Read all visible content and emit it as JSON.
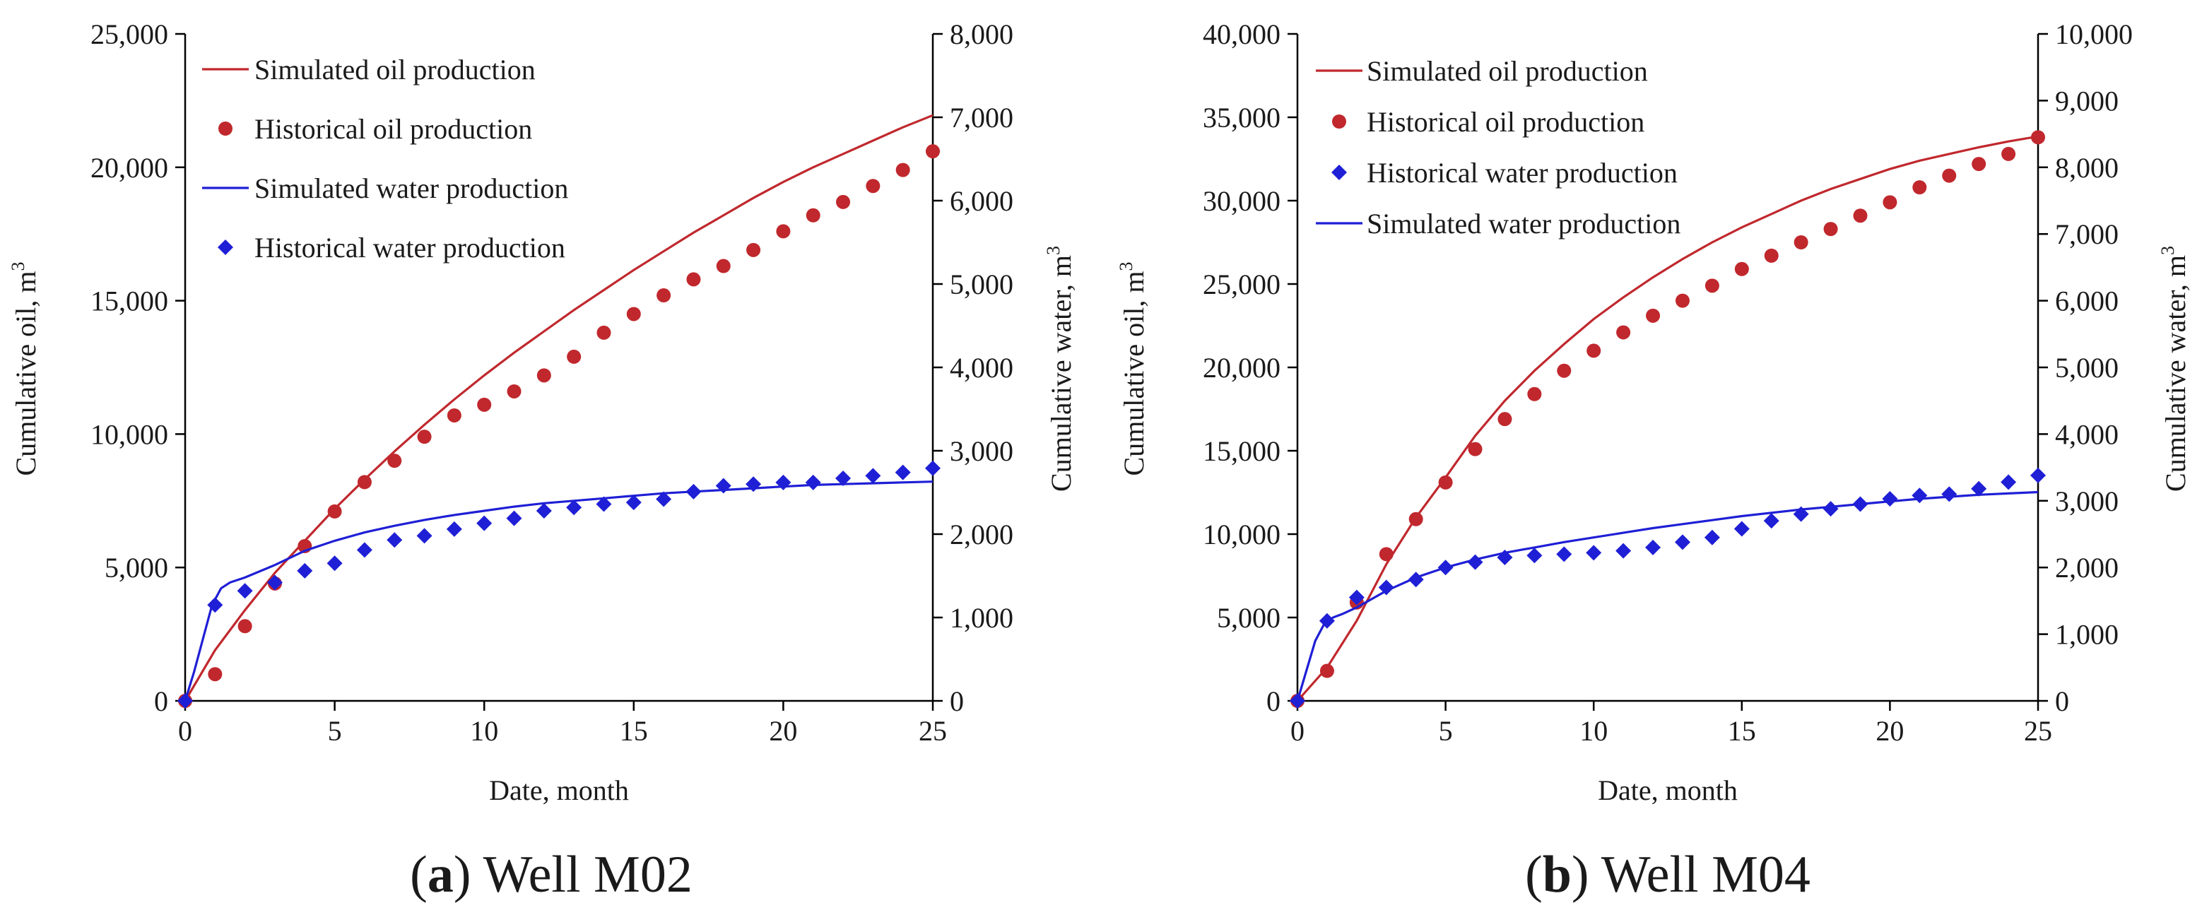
{
  "chart_data": [
    {
      "type": "line",
      "caption": {
        "letter": "a",
        "rest": " Well M02"
      },
      "xlabel": "Date, month",
      "ylabel_left": "Cumulative oil, m",
      "ylabel_right": "Cumulative water, m",
      "ylabel_sup": "3",
      "xlim": [
        0,
        25
      ],
      "ylim_left": [
        0,
        25000
      ],
      "ylim_right": [
        0,
        8000
      ],
      "x_ticks": [
        "0",
        "5",
        "10",
        "15",
        "20",
        "25"
      ],
      "y_left_ticks": [
        "0",
        "5,000",
        "10,000",
        "15,000",
        "20,000",
        "25,000"
      ],
      "y_right_ticks": [
        "0",
        "1,000",
        "2,000",
        "3,000",
        "4,000",
        "5,000",
        "6,000",
        "7,000",
        "8,000"
      ],
      "grid": false,
      "legend_position": "top-left",
      "legend": [
        {
          "label": "Simulated oil production",
          "kind": "line",
          "color": "#c0282d"
        },
        {
          "label": "Historical oil production",
          "kind": "circle",
          "color": "#c0282d"
        },
        {
          "label": "Simulated water production",
          "kind": "line",
          "color": "#1f1fd6"
        },
        {
          "label": "Historical water production",
          "kind": "diamond",
          "color": "#1f1fd6"
        }
      ],
      "series": [
        {
          "name": "Simulated oil production",
          "axis": "left",
          "kind": "line",
          "color": "#c0282d",
          "x": [
            0,
            1,
            2,
            3,
            4,
            5,
            6,
            7,
            8,
            9,
            10,
            11,
            12,
            13,
            14,
            15,
            16,
            17,
            18,
            19,
            20,
            21,
            22,
            23,
            24,
            25
          ],
          "y": [
            0,
            1900,
            3400,
            4800,
            6000,
            7200,
            8300,
            9350,
            10350,
            11300,
            12200,
            13050,
            13850,
            14650,
            15400,
            16150,
            16850,
            17550,
            18200,
            18850,
            19450,
            20000,
            20500,
            21000,
            21500,
            21950
          ]
        },
        {
          "name": "Historical oil production",
          "axis": "left",
          "kind": "circle",
          "color": "#c0282d",
          "x": [
            0,
            1,
            2,
            3,
            4,
            5,
            6,
            7,
            8,
            9,
            10,
            11,
            12,
            13,
            14,
            15,
            16,
            17,
            18,
            19,
            20,
            21,
            22,
            23,
            24,
            25
          ],
          "y": [
            0,
            1000,
            2800,
            4400,
            5800,
            7100,
            8200,
            9000,
            9900,
            10700,
            11100,
            11600,
            12200,
            12900,
            13800,
            14500,
            15200,
            15800,
            16300,
            16900,
            17600,
            18200,
            18700,
            19300,
            19900,
            20600
          ]
        },
        {
          "name": "Simulated water production",
          "axis": "right",
          "kind": "line",
          "color": "#1f1fd6",
          "x": [
            0,
            0.3,
            0.6,
            0.9,
            1.2,
            1.5,
            2,
            3,
            4,
            5,
            6,
            7,
            8,
            9,
            10,
            11,
            12,
            13,
            14,
            15,
            16,
            17,
            18,
            19,
            20,
            21,
            22,
            23,
            24,
            25
          ],
          "y": [
            0,
            350,
            750,
            1150,
            1350,
            1420,
            1480,
            1630,
            1800,
            1920,
            2020,
            2100,
            2170,
            2230,
            2280,
            2330,
            2370,
            2400,
            2430,
            2460,
            2490,
            2510,
            2530,
            2550,
            2570,
            2590,
            2600,
            2610,
            2620,
            2630
          ]
        },
        {
          "name": "Historical water production",
          "axis": "right",
          "kind": "diamond",
          "color": "#1f1fd6",
          "x": [
            0,
            1,
            2,
            3,
            4,
            5,
            6,
            7,
            8,
            9,
            10,
            11,
            12,
            13,
            14,
            15,
            16,
            17,
            18,
            19,
            20,
            21,
            22,
            23,
            24,
            25
          ],
          "y": [
            0,
            1150,
            1320,
            1420,
            1560,
            1650,
            1810,
            1930,
            1980,
            2060,
            2130,
            2190,
            2280,
            2320,
            2360,
            2380,
            2420,
            2510,
            2580,
            2600,
            2620,
            2620,
            2670,
            2700,
            2740,
            2790
          ]
        }
      ]
    },
    {
      "type": "line",
      "caption": {
        "letter": "b",
        "rest": " Well M04"
      },
      "xlabel": "Date, month",
      "ylabel_left": "Cumulative oil, m",
      "ylabel_right": "Cumulative water, m",
      "ylabel_sup": "3",
      "xlim": [
        0,
        25
      ],
      "ylim_left": [
        0,
        40000
      ],
      "ylim_right": [
        0,
        10000
      ],
      "x_ticks": [
        "0",
        "5",
        "10",
        "15",
        "20",
        "25"
      ],
      "y_left_ticks": [
        "0",
        "5,000",
        "10,000",
        "15,000",
        "20,000",
        "25,000",
        "30,000",
        "35,000",
        "40,000"
      ],
      "y_right_ticks": [
        "0",
        "1,000",
        "2,000",
        "3,000",
        "4,000",
        "5,000",
        "6,000",
        "7,000",
        "8,000",
        "9,000",
        "10,000"
      ],
      "grid": false,
      "legend_position": "top-left",
      "legend": [
        {
          "label": "Simulated oil production",
          "kind": "line",
          "color": "#c0282d"
        },
        {
          "label": "Historical oil production",
          "kind": "circle",
          "color": "#c0282d"
        },
        {
          "label": "Historical water production",
          "kind": "diamond",
          "color": "#1f1fd6"
        },
        {
          "label": "Simulated water production",
          "kind": "line",
          "color": "#1f1fd6"
        }
      ],
      "series": [
        {
          "name": "Simulated oil production",
          "axis": "left",
          "kind": "line",
          "color": "#c0282d",
          "x": [
            0,
            1,
            2,
            3,
            4,
            5,
            6,
            7,
            8,
            9,
            10,
            11,
            12,
            13,
            14,
            15,
            16,
            17,
            18,
            19,
            20,
            21,
            22,
            23,
            24,
            25
          ],
          "y": [
            0,
            2000,
            4800,
            8200,
            11000,
            13400,
            15900,
            18000,
            19800,
            21400,
            22900,
            24200,
            25400,
            26500,
            27500,
            28400,
            29200,
            30000,
            30700,
            31300,
            31900,
            32400,
            32800,
            33200,
            33550,
            33850
          ]
        },
        {
          "name": "Historical oil production",
          "axis": "left",
          "kind": "circle",
          "color": "#c0282d",
          "x": [
            0,
            1,
            2,
            3,
            4,
            5,
            6,
            7,
            8,
            9,
            10,
            11,
            12,
            13,
            14,
            15,
            16,
            17,
            18,
            19,
            20,
            21,
            22,
            23,
            24,
            25
          ],
          "y": [
            0,
            1800,
            5900,
            8800,
            10900,
            13100,
            15100,
            16900,
            18400,
            19800,
            21000,
            22100,
            23100,
            24000,
            24900,
            25900,
            26700,
            27500,
            28300,
            29100,
            29900,
            30800,
            31500,
            32200,
            32800,
            33800
          ]
        },
        {
          "name": "Historical water production",
          "axis": "right",
          "kind": "diamond",
          "color": "#1f1fd6",
          "x": [
            0,
            1,
            2,
            3,
            4,
            5,
            6,
            7,
            8,
            9,
            10,
            11,
            12,
            13,
            14,
            15,
            16,
            17,
            18,
            19,
            20,
            21,
            22,
            23,
            24,
            25
          ],
          "y": [
            0,
            1200,
            1550,
            1700,
            1820,
            2000,
            2080,
            2150,
            2180,
            2200,
            2220,
            2250,
            2300,
            2380,
            2450,
            2580,
            2700,
            2800,
            2880,
            2950,
            3030,
            3080,
            3100,
            3180,
            3280,
            3380
          ]
        },
        {
          "name": "Simulated water production",
          "axis": "right",
          "kind": "line",
          "color": "#1f1fd6",
          "x": [
            0,
            0.3,
            0.6,
            0.9,
            1.2,
            1.5,
            2,
            3,
            4,
            5,
            6,
            7,
            8,
            9,
            10,
            11,
            12,
            13,
            14,
            15,
            16,
            17,
            18,
            19,
            20,
            21,
            22,
            23,
            24,
            25
          ],
          "y": [
            0,
            450,
            900,
            1150,
            1250,
            1300,
            1400,
            1650,
            1850,
            2000,
            2120,
            2220,
            2300,
            2380,
            2450,
            2520,
            2590,
            2650,
            2710,
            2770,
            2820,
            2870,
            2910,
            2950,
            2990,
            3030,
            3060,
            3090,
            3110,
            3130
          ]
        }
      ]
    }
  ]
}
